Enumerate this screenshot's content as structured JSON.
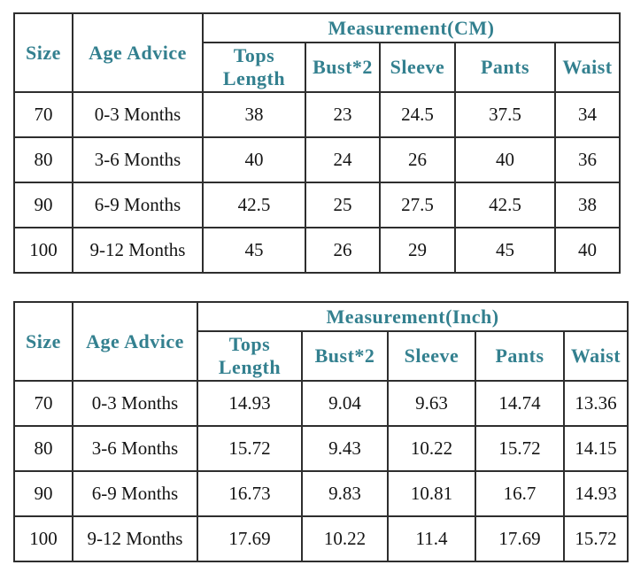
{
  "accent_color": "#33808F",
  "tables": {
    "cm": {
      "title": "Measurement(CM)",
      "headers": {
        "size": "Size",
        "age": "Age Advice",
        "tops": "Tops\nLength",
        "bust": "Bust*2",
        "sleeve": "Sleeve",
        "pants": "Pants",
        "waist": "Waist"
      },
      "rows": [
        {
          "size": "70",
          "age": "0-3 Months",
          "tops": "38",
          "bust": "23",
          "sleeve": "24.5",
          "pants": "37.5",
          "waist": "34"
        },
        {
          "size": "80",
          "age": "3-6 Months",
          "tops": "40",
          "bust": "24",
          "sleeve": "26",
          "pants": "40",
          "waist": "36"
        },
        {
          "size": "90",
          "age": "6-9 Months",
          "tops": "42.5",
          "bust": "25",
          "sleeve": "27.5",
          "pants": "42.5",
          "waist": "38"
        },
        {
          "size": "100",
          "age": "9-12 Months",
          "tops": "45",
          "bust": "26",
          "sleeve": "29",
          "pants": "45",
          "waist": "40"
        }
      ]
    },
    "inch": {
      "title": "Measurement(Inch)",
      "headers": {
        "size": "Size",
        "age": "Age Advice",
        "tops": "Tops\nLength",
        "bust": "Bust*2",
        "sleeve": "Sleeve",
        "pants": "Pants",
        "waist": "Waist"
      },
      "rows": [
        {
          "size": "70",
          "age": "0-3 Months",
          "tops": "14.93",
          "bust": "9.04",
          "sleeve": "9.63",
          "pants": "14.74",
          "waist": "13.36"
        },
        {
          "size": "80",
          "age": "3-6 Months",
          "tops": "15.72",
          "bust": "9.43",
          "sleeve": "10.22",
          "pants": "15.72",
          "waist": "14.15"
        },
        {
          "size": "90",
          "age": "6-9 Months",
          "tops": "16.73",
          "bust": "9.83",
          "sleeve": "10.81",
          "pants": "16.7",
          "waist": "14.93"
        },
        {
          "size": "100",
          "age": "9-12 Months",
          "tops": "17.69",
          "bust": "10.22",
          "sleeve": "11.4",
          "pants": "17.69",
          "waist": "15.72"
        }
      ]
    }
  }
}
